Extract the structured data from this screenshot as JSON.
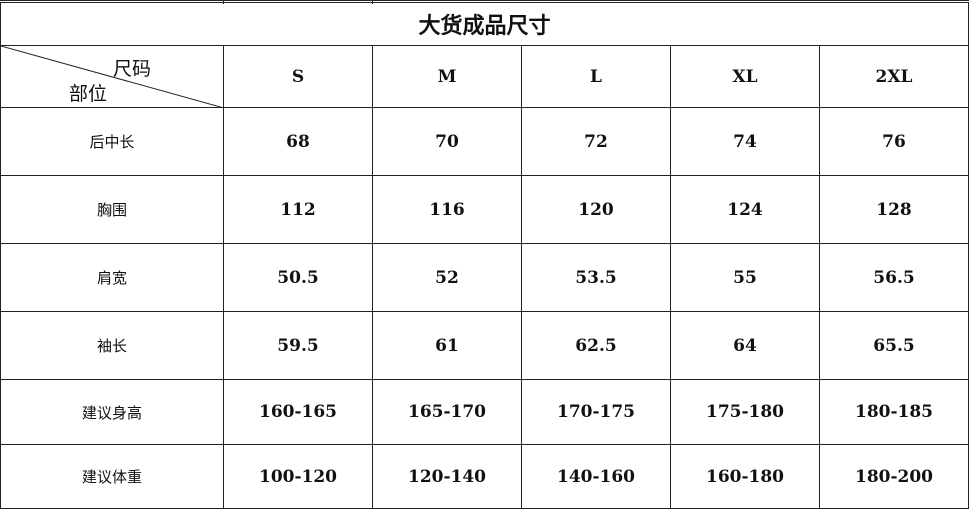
{
  "title": "大货成品尺寸",
  "corner": {
    "size_label": "尺码",
    "part_label": "部位"
  },
  "sizes": [
    "S",
    "M",
    "L",
    "XL",
    "2XL"
  ],
  "rows": [
    {
      "label": "后中长",
      "values": [
        "68",
        "70",
        "72",
        "74",
        "76"
      ]
    },
    {
      "label": "胸围",
      "values": [
        "112",
        "116",
        "120",
        "124",
        "128"
      ]
    },
    {
      "label": "肩宽",
      "values": [
        "50.5",
        "52",
        "53.5",
        "55",
        "56.5"
      ]
    },
    {
      "label": "袖长",
      "values": [
        "59.5",
        "61",
        "62.5",
        "64",
        "65.5"
      ]
    },
    {
      "label": "建议身高",
      "values": [
        "160-165",
        "165-170",
        "170-175",
        "175-180",
        "180-185"
      ]
    },
    {
      "label": "建议体重",
      "values": [
        "100-120",
        "120-140",
        "140-160",
        "160-180",
        "180-200"
      ]
    }
  ]
}
